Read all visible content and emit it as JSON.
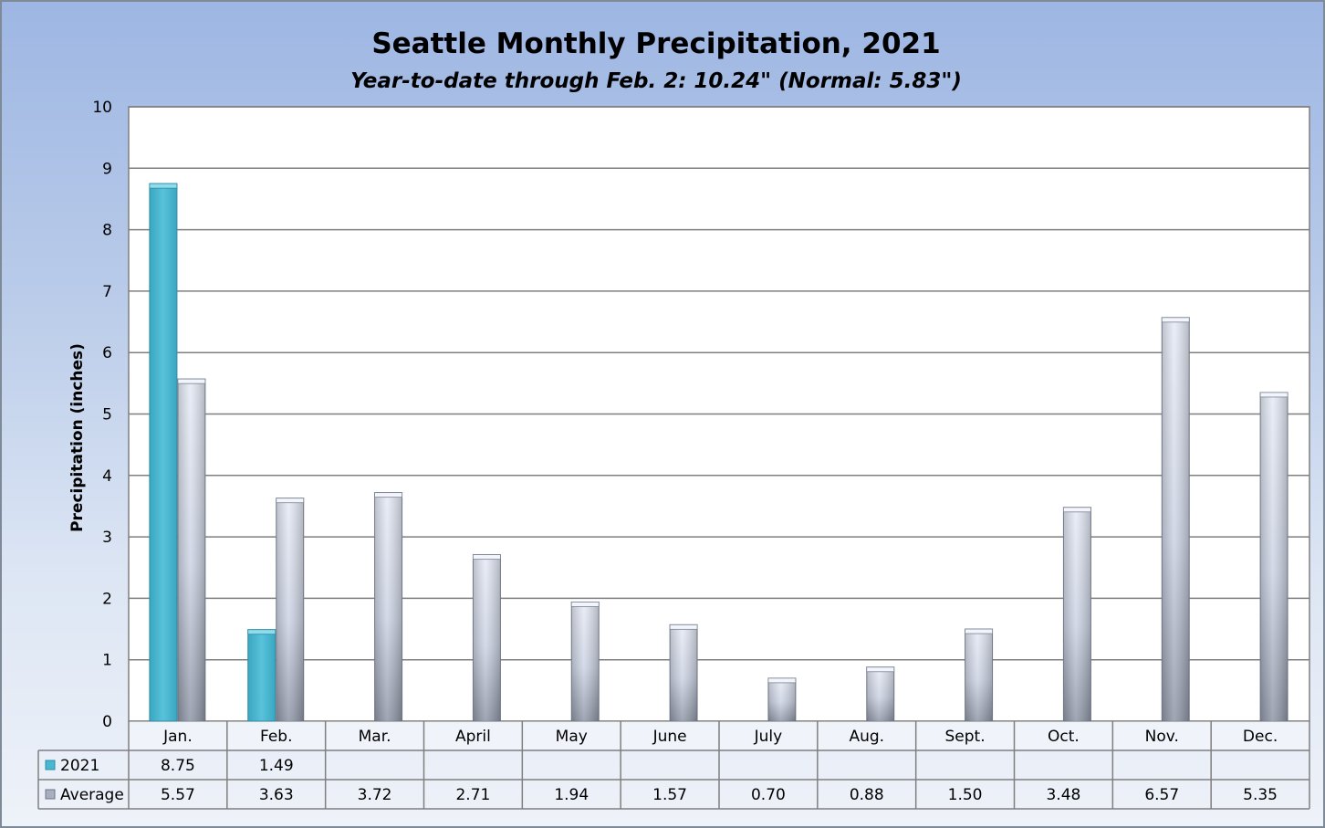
{
  "chart_data": {
    "type": "bar",
    "title": "Seattle Monthly Precipitation, 2021",
    "subtitle": "Year-to-date through Feb. 2: 10.24\" (Normal: 5.83\")",
    "ylabel": "Precipitation (inches)",
    "xlabel": "",
    "ylim": [
      0,
      10
    ],
    "y_ticks": [
      0,
      1,
      2,
      3,
      4,
      5,
      6,
      7,
      8,
      9,
      10
    ],
    "grid": true,
    "legend": "data-table",
    "categories": [
      "Jan.",
      "Feb.",
      "Mar.",
      "April",
      "May",
      "June",
      "July",
      "Aug.",
      "Sept.",
      "Oct.",
      "Nov.",
      "Dec."
    ],
    "series": [
      {
        "name": "2021",
        "color": "#4bb8d1",
        "values": [
          8.75,
          1.49,
          null,
          null,
          null,
          null,
          null,
          null,
          null,
          null,
          null,
          null
        ],
        "labels": [
          "8.75",
          "1.49",
          "",
          "",
          "",
          "",
          "",
          "",
          "",
          "",
          "",
          ""
        ]
      },
      {
        "name": "Average",
        "color": "#c8d0e0",
        "values": [
          5.57,
          3.63,
          3.72,
          2.71,
          1.94,
          1.57,
          0.7,
          0.88,
          1.5,
          3.48,
          6.57,
          5.35
        ],
        "labels": [
          "5.57",
          "3.63",
          "3.72",
          "2.71",
          "1.94",
          "1.57",
          "0.70",
          "0.88",
          "1.50",
          "3.48",
          "6.57",
          "5.35"
        ]
      }
    ]
  }
}
